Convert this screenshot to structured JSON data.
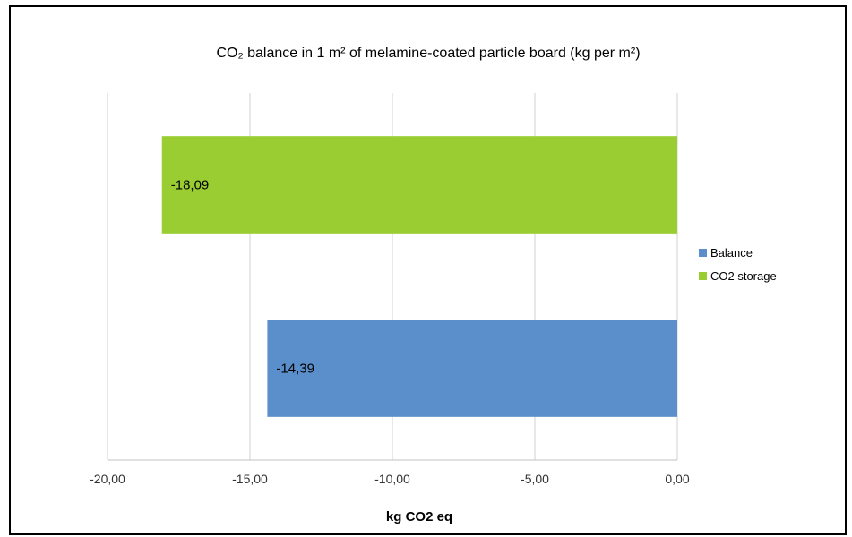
{
  "chart_data": {
    "type": "bar",
    "orientation": "horizontal",
    "title": "CO₂ balance in 1 m² of melamine-coated particle board (kg per m²)",
    "xlabel": "kg CO2 eq",
    "ylabel": "",
    "xlim": [
      -20,
      0
    ],
    "x_ticks": [
      -20,
      -15,
      -10,
      -5,
      0
    ],
    "x_tick_labels": [
      "-20,00",
      "-15,00",
      "-10,00",
      "-5,00",
      "0,00"
    ],
    "grid": true,
    "legend_position": "right",
    "categories": [
      "CO2 storage",
      "Balance"
    ],
    "series": [
      {
        "name": "CO2 storage",
        "value": -18.09,
        "label": "-18,09",
        "color": "#9ACD32"
      },
      {
        "name": "Balance",
        "value": -14.39,
        "label": "-14,39",
        "color": "#5B8FCB"
      }
    ],
    "legend": [
      {
        "name": "Balance",
        "color": "#5B8FCB"
      },
      {
        "name": "CO2 storage",
        "color": "#9ACD32"
      }
    ]
  }
}
